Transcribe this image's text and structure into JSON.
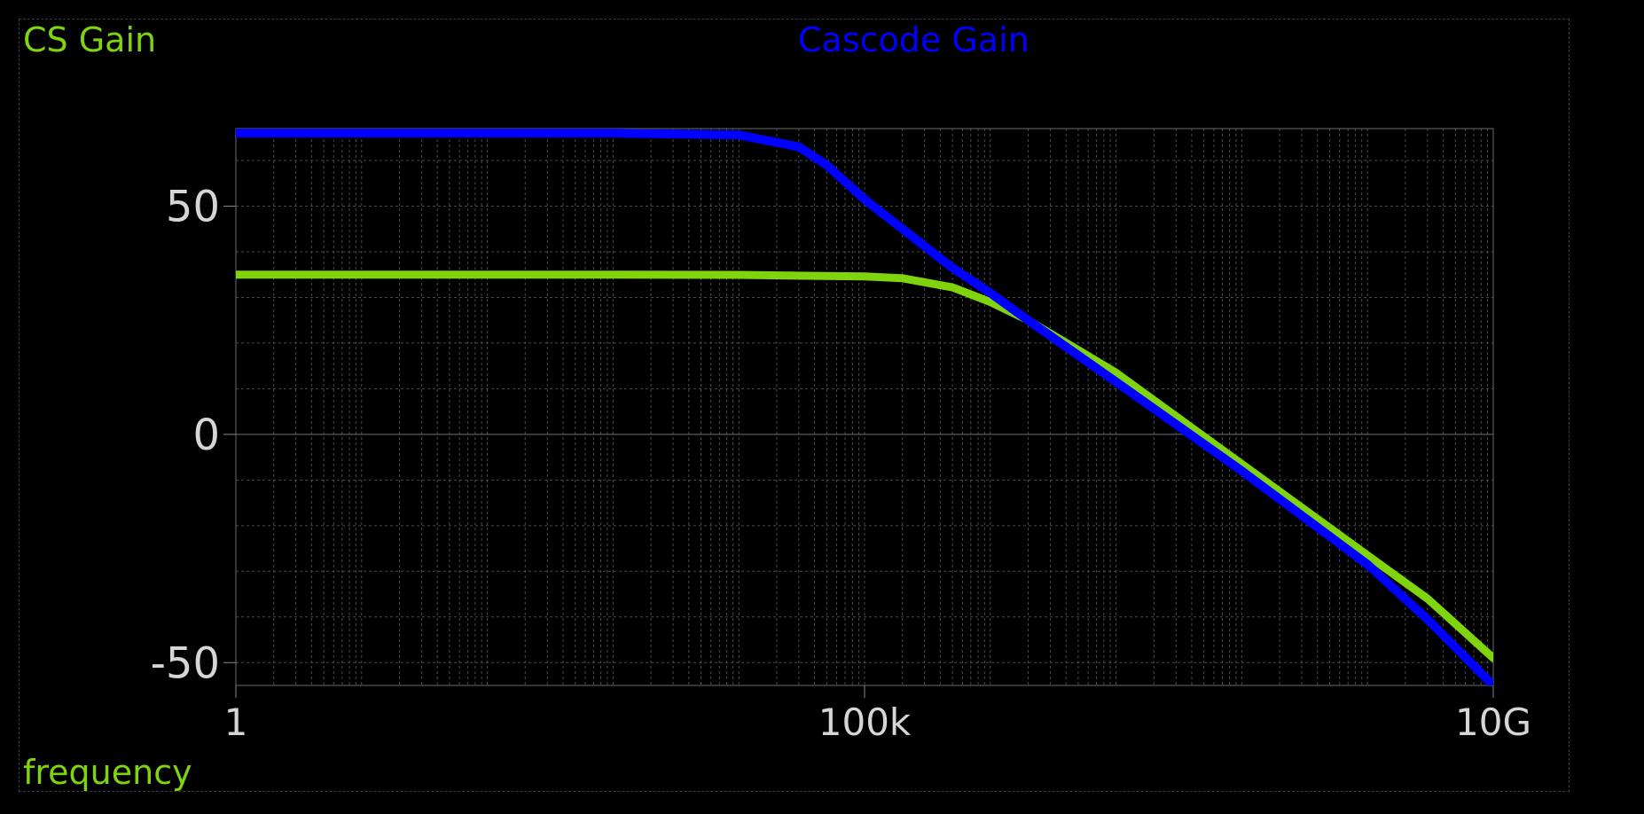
{
  "chart_data": {
    "type": "line",
    "x_scale": "log",
    "xlabel": "frequency",
    "ylabel": "",
    "xlim": [
      1,
      10000000000
    ],
    "ylim": [
      -55,
      67
    ],
    "x_ticks": [
      {
        "value": 1,
        "label": "1"
      },
      {
        "value": 100000,
        "label": "100k"
      },
      {
        "value": 10000000000,
        "label": "10G"
      }
    ],
    "y_ticks": [
      {
        "value": 50,
        "label": "50"
      },
      {
        "value": 0,
        "label": "0"
      },
      {
        "value": -50,
        "label": "-50"
      }
    ],
    "grid": true,
    "legend_placement": "top",
    "series": [
      {
        "name": "CS Gain",
        "color": "#7fd40e",
        "points": [
          [
            1,
            35
          ],
          [
            1000,
            35
          ],
          [
            10000,
            34.95
          ],
          [
            100000,
            34.6
          ],
          [
            200000,
            34.2
          ],
          [
            500000,
            32.2
          ],
          [
            1000000,
            29
          ],
          [
            2000000,
            25
          ],
          [
            5000000,
            18.5
          ],
          [
            10000000,
            13.5
          ],
          [
            100000000,
            -6.5
          ],
          [
            1000000000,
            -26.5
          ],
          [
            3000000000,
            -36
          ],
          [
            10000000000,
            -49
          ]
        ]
      },
      {
        "name": "Cascode Gain",
        "color": "#0000ff",
        "points": [
          [
            1,
            66
          ],
          [
            1000,
            66
          ],
          [
            10000,
            65.6
          ],
          [
            30000,
            63
          ],
          [
            50000,
            59
          ],
          [
            100000,
            51.5
          ],
          [
            200000,
            45
          ],
          [
            500000,
            36.5
          ],
          [
            1000000,
            31
          ],
          [
            2000000,
            25
          ],
          [
            10000000,
            11.5
          ],
          [
            100000000,
            -8
          ],
          [
            1000000000,
            -28.5
          ],
          [
            3000000000,
            -40.5
          ],
          [
            10000000000,
            -55
          ]
        ]
      }
    ]
  }
}
